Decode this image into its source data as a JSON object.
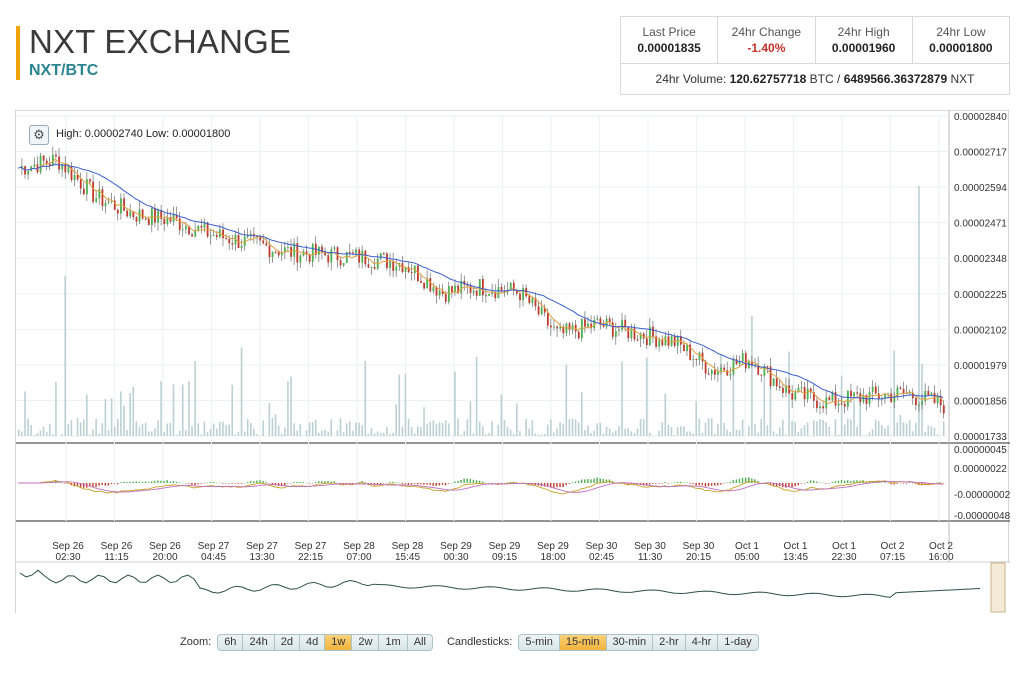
{
  "header": {
    "title": "NXT EXCHANGE",
    "pair": "NXT/BTC"
  },
  "stats": {
    "last_price_label": "Last Price",
    "last_price": "0.00001835",
    "change_label": "24hr Change",
    "change": "-1.40%",
    "high_label": "24hr High",
    "high": "0.00001960",
    "low_label": "24hr Low",
    "low": "0.00001800",
    "volume_label": "24hr Volume:",
    "volume_btc": "120.62757718",
    "volume_btc_unit": "BTC /",
    "volume_nxt": "6489566.36372879",
    "volume_nxt_unit": "NXT"
  },
  "chart": {
    "high_low_text": "High: 0.00002740   Low: 0.00001800",
    "settings_icon": "gear-icon",
    "colors": {
      "up": "#4caf50",
      "down": "#c0392b",
      "ma_fast": "#e0a040",
      "ma_slow": "#3b5fd1",
      "volume": "#bcd0d3",
      "macd": "#c8a020",
      "signal": "#c070c0",
      "navigator": "#2e4f4f"
    }
  },
  "chart_data": {
    "type": "candlestick",
    "price_axis_ticks": [
      "0.00002840",
      "0.00002717",
      "0.00002594",
      "0.00002471",
      "0.00002348",
      "0.00002225",
      "0.00002102",
      "0.00001979",
      "0.00001856",
      "0.00001733"
    ],
    "macd_axis_ticks": [
      "0.00000045",
      "0.00000022",
      "-0.00000002",
      "-0.00000048"
    ],
    "x_ticks": [
      [
        "Sep 26",
        "02:30"
      ],
      [
        "Sep 26",
        "11:15"
      ],
      [
        "Sep 26",
        "20:00"
      ],
      [
        "Sep 27",
        "04:45"
      ],
      [
        "Sep 27",
        "13:30"
      ],
      [
        "Sep 27",
        "22:15"
      ],
      [
        "Sep 28",
        "07:00"
      ],
      [
        "Sep 28",
        "15:45"
      ],
      [
        "Sep 29",
        "00:30"
      ],
      [
        "Sep 29",
        "09:15"
      ],
      [
        "Sep 29",
        "18:00"
      ],
      [
        "Sep 30",
        "02:45"
      ],
      [
        "Sep 30",
        "11:30"
      ],
      [
        "Sep 30",
        "20:15"
      ],
      [
        "Oct 1",
        "05:00"
      ],
      [
        "Oct 1",
        "13:45"
      ],
      [
        "Oct 1",
        "22:30"
      ],
      [
        "Oct 2",
        "07:15"
      ],
      [
        "Oct 2",
        "16:00"
      ]
    ],
    "price_trend": [
      2.66e-05,
      2.69e-05,
      2.56e-05,
      2.5e-05,
      2.48e-05,
      2.43e-05,
      2.4e-05,
      2.37e-05,
      2.36e-05,
      2.35e-05,
      2.33e-05,
      2.23e-05,
      2.25e-05,
      2.23e-05,
      2.08e-05,
      2.12e-05,
      2.09e-05,
      2.06e-05,
      1.96e-05,
      2e-05,
      1.88e-05,
      1.85e-05,
      1.87e-05,
      1.88e-05,
      1.84e-05
    ],
    "ylim": [
      1.733e-05,
      2.84e-05
    ]
  },
  "zoom": {
    "label": "Zoom:",
    "options": [
      "6h",
      "24h",
      "2d",
      "4d",
      "1w",
      "2w",
      "1m",
      "All"
    ],
    "active": "1w"
  },
  "candlesticks": {
    "label": "Candlesticks:",
    "options": [
      "5-min",
      "15-min",
      "30-min",
      "2-hr",
      "4-hr",
      "1-day"
    ],
    "active": "15-min"
  }
}
